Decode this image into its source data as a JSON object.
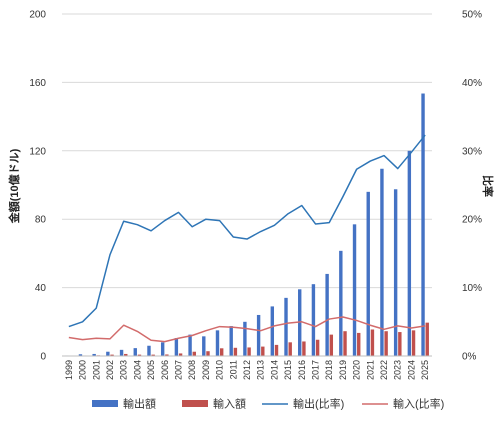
{
  "chart_data": {
    "type": "bar",
    "categories": [
      "1999",
      "2000",
      "2001",
      "2002",
      "2003",
      "2004",
      "2005",
      "2006",
      "2007",
      "2008",
      "2009",
      "2010",
      "2011",
      "2012",
      "2013",
      "2014",
      "2015",
      "2016",
      "2017",
      "2018",
      "2019",
      "2020",
      "2021",
      "2022",
      "2023",
      "2024",
      "2025"
    ],
    "series": [
      {
        "name": "輸出額",
        "type": "bar",
        "axis": "left",
        "color": "#4472C4",
        "values": [
          0.3,
          1.0,
          1.2,
          2.5,
          3.6,
          4.6,
          6.0,
          8.0,
          10.5,
          12.5,
          11.5,
          15.0,
          17.5,
          20.0,
          24.0,
          29.0,
          34.0,
          39.0,
          42.0,
          48.0,
          61.5,
          77.0,
          96.0,
          109.5,
          97.5,
          120.0,
          153.5
        ]
      },
      {
        "name": "輸入額",
        "type": "bar",
        "axis": "left",
        "color": "#C0504D",
        "values": [
          0.1,
          0.3,
          0.4,
          0.8,
          1.2,
          0.8,
          0.8,
          0.9,
          1.5,
          2.5,
          2.8,
          4.5,
          4.8,
          5.0,
          5.5,
          6.5,
          8.0,
          8.5,
          9.5,
          12.5,
          14.5,
          13.5,
          15.5,
          14.5,
          14.0,
          15.0,
          19.5
        ]
      },
      {
        "name": "輸出(比率)",
        "type": "line",
        "axis": "right",
        "color": "#2E75B6",
        "values": [
          4.3,
          5.0,
          7.0,
          14.8,
          19.7,
          19.2,
          18.3,
          19.8,
          21.0,
          18.9,
          20.0,
          19.8,
          17.4,
          17.1,
          18.2,
          19.1,
          20.8,
          22.0,
          19.3,
          19.5,
          23.3,
          27.3,
          28.5,
          29.3,
          27.4,
          29.8,
          32.3
        ]
      },
      {
        "name": "輸入(比率)",
        "type": "line",
        "axis": "right",
        "color": "#D26B6B",
        "values": [
          2.7,
          2.4,
          2.6,
          2.5,
          4.5,
          3.6,
          2.3,
          2.1,
          2.6,
          3.0,
          3.7,
          4.3,
          4.2,
          4.0,
          3.7,
          4.4,
          4.8,
          5.0,
          4.3,
          5.4,
          5.7,
          5.2,
          4.5,
          3.9,
          4.4,
          4.1,
          4.4
        ]
      }
    ],
    "ylabel_left": "金額(10億ドル)",
    "ylabel_right": "比率",
    "ylim_left": [
      0,
      200
    ],
    "ylim_right": [
      0,
      50
    ],
    "yticks_left": [
      "0",
      "40",
      "80",
      "120",
      "160",
      "200"
    ],
    "yticks_right": [
      "0%",
      "10%",
      "20%",
      "30%",
      "40%",
      "50%"
    ],
    "grid": "horizontal",
    "legend": "bottom"
  }
}
